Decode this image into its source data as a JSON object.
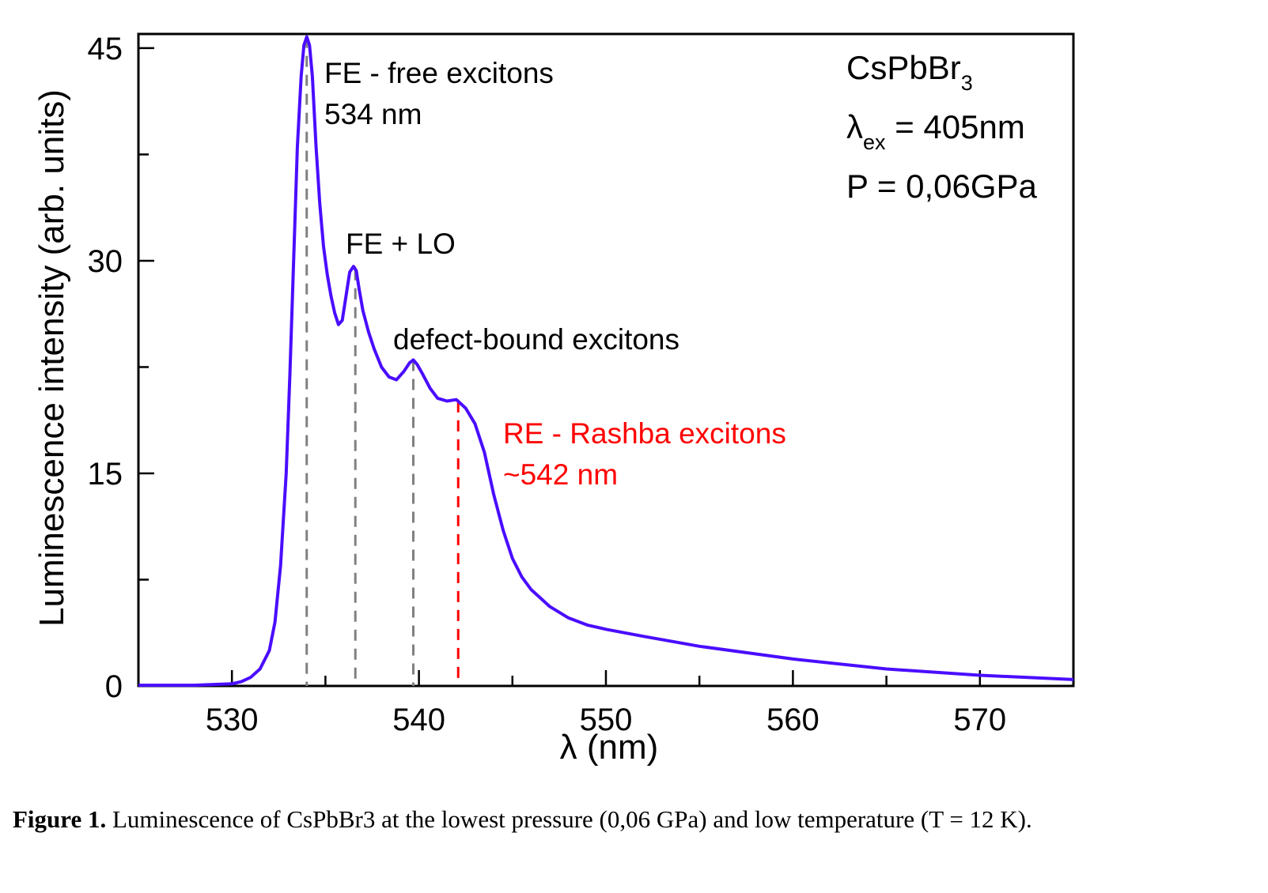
{
  "chart_data": {
    "type": "line",
    "xlabel": "λ (nm)",
    "ylabel": "Luminescence intensity (arb. units)",
    "xlim": [
      525,
      575
    ],
    "ylim": [
      0,
      46
    ],
    "x_ticks": [
      530,
      540,
      550,
      560,
      570
    ],
    "x_tick_labels": [
      "530",
      "540",
      "550",
      "560",
      "570"
    ],
    "y_ticks": [
      0,
      15,
      30,
      45
    ],
    "y_tick_labels": [
      "0",
      "15",
      "30",
      "45"
    ],
    "grid": false,
    "legend": "none",
    "series": [
      {
        "color": "#4a0dff",
        "x": [
          525,
          528,
          530,
          530.5,
          531,
          531.5,
          532,
          532.3,
          532.6,
          532.9,
          533.1,
          533.3,
          533.5,
          533.7,
          533.85,
          534,
          534.15,
          534.3,
          534.5,
          534.7,
          534.9,
          535.1,
          535.3,
          535.5,
          535.7,
          535.9,
          536.1,
          536.3,
          536.5,
          536.65,
          536.8,
          537,
          537.3,
          537.6,
          538,
          538.4,
          538.8,
          539.2,
          539.5,
          539.7,
          539.9,
          540.2,
          540.6,
          541,
          541.5,
          542,
          542.5,
          543,
          543.5,
          544,
          544.5,
          545,
          545.5,
          546,
          547,
          548,
          549,
          550,
          552,
          555,
          560,
          565,
          570,
          575
        ],
        "y": [
          0.05,
          0.05,
          0.15,
          0.3,
          0.6,
          1.2,
          2.5,
          4.5,
          8.5,
          15,
          22,
          30,
          38,
          43,
          45.2,
          45.8,
          45.2,
          43,
          38,
          34,
          31,
          29,
          27.5,
          26.3,
          25.5,
          25.8,
          27.5,
          29.2,
          29.6,
          29.3,
          28,
          26.5,
          25,
          23.8,
          22.5,
          21.8,
          21.6,
          22.2,
          22.8,
          23,
          22.7,
          22,
          21,
          20.3,
          20.1,
          20.2,
          19.6,
          18.5,
          16.5,
          13.5,
          11,
          9,
          7.7,
          6.8,
          5.6,
          4.8,
          4.3,
          4,
          3.5,
          2.8,
          1.9,
          1.2,
          0.75,
          0.45
        ]
      }
    ],
    "markers": [
      {
        "x": 534,
        "color": "#808080"
      },
      {
        "x": 536.6,
        "color": "#808080"
      },
      {
        "x": 539.7,
        "color": "#808080"
      },
      {
        "x": 542.1,
        "color": "#ff0000"
      }
    ],
    "annotations": {
      "fe_line1": "FE - free excitons",
      "fe_line2": "534 nm",
      "felo": "FE + LO",
      "defect": "defect-bound excitons",
      "re_line1": "RE - Rashba excitons",
      "re_line2": "~542 nm"
    },
    "info": {
      "formula_main": "CsPbBr",
      "formula_sub": "3",
      "lambda_symbol": "λ",
      "lambda_sub": "ex",
      "lambda_value": " = 405nm",
      "pressure": "P = 0,06GPa"
    }
  },
  "caption": {
    "label": "Figure 1.",
    "text": " Luminescence of CsPbBr3 at the lowest pressure (0,06 GPa) and low temperature (T = 12 K)."
  }
}
